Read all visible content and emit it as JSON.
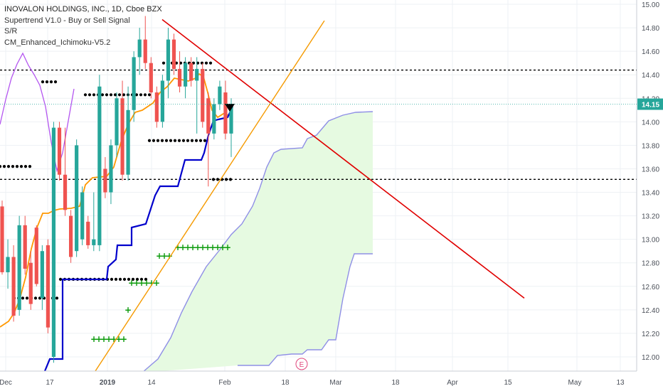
{
  "legend": {
    "symbol": "INOVALON HOLDINGS, INC., 1D, Cboe BZX",
    "indicators": [
      "Supertrend V1.0 - Buy or Sell Signal",
      "S/R",
      "CM_Enhanced_Ichimoku-V5.2"
    ]
  },
  "colors": {
    "up": "#26a69a",
    "down": "#ef5350",
    "supertrend": "#0000cc",
    "kijun_orange": "#ff9800",
    "tenkan_purple": "#b455f0",
    "trendline_red": "#e00000",
    "trendline_orange": "#f59a00",
    "cloud_fill": "#e6fae1",
    "cloud_edge": "#8f8fe6",
    "sr_dots": "#000000",
    "plus": "#0b9a0b",
    "price_tag": "#26a69a",
    "earnings": "#e0457b"
  },
  "chart_data": {
    "type": "candlestick",
    "ylim": [
      11.85,
      15.05
    ],
    "y_ticks": [
      "15.00",
      "14.80",
      "14.60",
      "14.40",
      "14.20",
      "14.00",
      "13.80",
      "13.60",
      "13.40",
      "13.20",
      "13.00",
      "12.80",
      "12.60",
      "12.40",
      "12.20",
      "12.00"
    ],
    "x_ticks": [
      "Dec",
      "17",
      "2019",
      "14",
      "Feb",
      "18",
      "Mar",
      "18",
      "Apr",
      "15",
      "May",
      "13"
    ],
    "last_price": "14.15",
    "earnings_marker": "E",
    "candles": [
      {
        "o": 13.28,
        "h": 13.33,
        "l": 12.7,
        "c": 12.72
      },
      {
        "o": 12.72,
        "h": 13.0,
        "l": 12.58,
        "c": 12.85
      },
      {
        "o": 12.85,
        "h": 12.95,
        "l": 12.3,
        "c": 12.35
      },
      {
        "o": 12.4,
        "h": 13.2,
        "l": 12.35,
        "c": 13.12
      },
      {
        "o": 13.12,
        "h": 13.2,
        "l": 12.7,
        "c": 12.75
      },
      {
        "o": 12.8,
        "h": 12.9,
        "l": 12.4,
        "c": 12.45
      },
      {
        "o": 13.1,
        "h": 13.12,
        "l": 12.6,
        "c": 12.62
      },
      {
        "o": 12.5,
        "h": 12.95,
        "l": 12.4,
        "c": 12.9
      },
      {
        "o": 12.95,
        "h": 13.0,
        "l": 12.2,
        "c": 12.25
      },
      {
        "o": 12.0,
        "h": 14.0,
        "l": 11.95,
        "c": 13.95
      },
      {
        "o": 13.95,
        "h": 14.0,
        "l": 13.5,
        "c": 13.55
      },
      {
        "o": 13.55,
        "h": 13.95,
        "l": 13.2,
        "c": 13.25
      },
      {
        "o": 13.2,
        "h": 13.25,
        "l": 12.8,
        "c": 12.85
      },
      {
        "o": 12.9,
        "h": 13.85,
        "l": 12.85,
        "c": 13.8
      },
      {
        "o": 13.0,
        "h": 13.45,
        "l": 12.95,
        "c": 13.4
      },
      {
        "o": 13.15,
        "h": 13.2,
        "l": 12.92,
        "c": 12.95
      },
      {
        "o": 12.95,
        "h": 13.4,
        "l": 12.9,
        "c": 13.0
      },
      {
        "o": 12.95,
        "h": 14.4,
        "l": 12.9,
        "c": 14.3
      },
      {
        "o": 13.6,
        "h": 13.7,
        "l": 13.35,
        "c": 13.4
      },
      {
        "o": 13.4,
        "h": 13.85,
        "l": 13.3,
        "c": 13.8
      },
      {
        "o": 13.8,
        "h": 14.25,
        "l": 13.7,
        "c": 14.2
      },
      {
        "o": 14.2,
        "h": 14.35,
        "l": 13.5,
        "c": 13.55
      },
      {
        "o": 13.55,
        "h": 14.3,
        "l": 13.5,
        "c": 14.1
      },
      {
        "o": 14.1,
        "h": 14.6,
        "l": 14.0,
        "c": 14.55
      },
      {
        "o": 14.55,
        "h": 14.8,
        "l": 14.4,
        "c": 14.7
      },
      {
        "o": 14.7,
        "h": 14.9,
        "l": 14.45,
        "c": 14.5
      },
      {
        "o": 14.5,
        "h": 14.55,
        "l": 14.2,
        "c": 14.25
      },
      {
        "o": 14.25,
        "h": 14.3,
        "l": 13.95,
        "c": 14.0
      },
      {
        "o": 14.0,
        "h": 14.4,
        "l": 13.95,
        "c": 14.35
      },
      {
        "o": 14.35,
        "h": 14.8,
        "l": 14.2,
        "c": 14.7
      },
      {
        "o": 14.7,
        "h": 14.75,
        "l": 14.4,
        "c": 14.45
      },
      {
        "o": 14.45,
        "h": 14.6,
        "l": 14.25,
        "c": 14.3
      },
      {
        "o": 14.3,
        "h": 14.55,
        "l": 14.2,
        "c": 14.5
      },
      {
        "o": 14.5,
        "h": 14.55,
        "l": 14.3,
        "c": 14.35
      },
      {
        "o": 14.35,
        "h": 14.55,
        "l": 13.9,
        "c": 14.45
      },
      {
        "o": 14.45,
        "h": 14.5,
        "l": 13.95,
        "c": 14.0
      },
      {
        "o": 14.2,
        "h": 14.25,
        "l": 13.45,
        "c": 13.9
      },
      {
        "o": 13.9,
        "h": 14.2,
        "l": 13.85,
        "c": 14.15
      },
      {
        "o": 14.15,
        "h": 14.35,
        "l": 14.1,
        "c": 14.3
      },
      {
        "o": 14.25,
        "h": 14.35,
        "l": 13.85,
        "c": 13.9
      },
      {
        "o": 13.9,
        "h": 14.2,
        "l": 13.7,
        "c": 14.15
      }
    ],
    "overlays": {
      "supertrend": [
        [
          12.0,
          13.6
        ],
        [
          12.0,
          13.55
        ],
        [
          12.0,
          13.5
        ],
        [
          12.0,
          13.45
        ],
        [
          12.0,
          13.4
        ],
        [
          12.0,
          13.35
        ],
        [
          12.0,
          13.3
        ],
        [
          12.0,
          13.2
        ],
        [
          12.0,
          13.1
        ],
        [
          12.0,
          13.0
        ],
        [
          12.0,
          12.9
        ],
        [
          12.0,
          12.85
        ],
        [
          12.0,
          12.8
        ],
        [
          12.0,
          12.75
        ],
        [
          12.0,
          12.7
        ],
        [
          12.0,
          12.65
        ],
        [
          12.0,
          12.62
        ],
        [
          12.0,
          12.6
        ],
        [
          12.0,
          12.58
        ],
        [
          12.0,
          12.55
        ]
      ],
      "resistance_line": [
        14.87,
        12.5
      ],
      "support_line": [
        11.87,
        14.86
      ]
    }
  }
}
